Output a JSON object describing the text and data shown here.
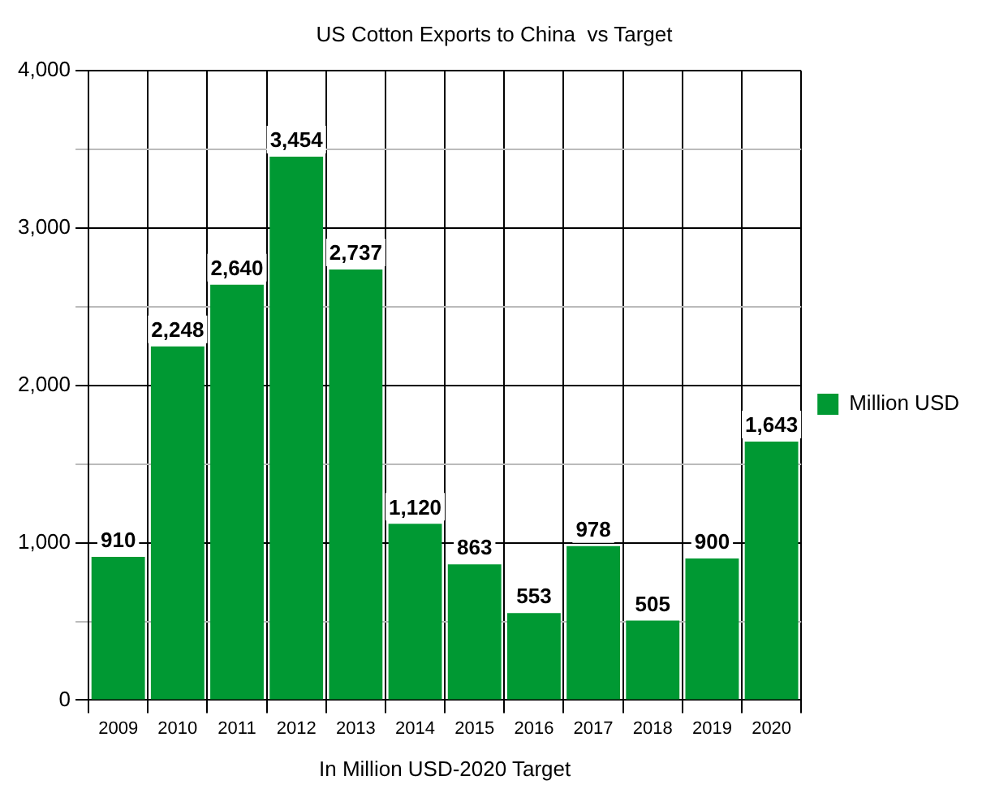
{
  "chart_data": {
    "type": "bar",
    "title": "US Cotton Exports to China  vs Target",
    "xlabel": "In Million USD-2020 Target",
    "categories": [
      "2009",
      "2010",
      "2011",
      "2012",
      "2013",
      "2014",
      "2015",
      "2016",
      "2017",
      "2018",
      "2019",
      "2020"
    ],
    "series": [
      {
        "name": "Million USD",
        "color": "#009933",
        "values": [
          910,
          2248,
          2640,
          3454,
          2737,
          1120,
          863,
          553,
          978,
          505,
          900,
          1643
        ],
        "value_labels": [
          "910",
          "2,248",
          "2,640",
          "3,454",
          "2,737",
          "1,120",
          "863",
          "553",
          "978",
          "505",
          "900",
          "1,643"
        ]
      }
    ],
    "ylim": [
      0,
      4000
    ],
    "yticks": [
      {
        "value": 0,
        "label": "0"
      },
      {
        "value": 500,
        "label": null
      },
      {
        "value": 1000,
        "label": "1,000"
      },
      {
        "value": 1500,
        "label": null
      },
      {
        "value": 2000,
        "label": "2,000"
      },
      {
        "value": 2500,
        "label": null
      },
      {
        "value": 3000,
        "label": "3,000"
      },
      {
        "value": 3500,
        "label": null
      },
      {
        "value": 4000,
        "label": "4,000"
      }
    ],
    "grid": true,
    "legend": "right"
  }
}
